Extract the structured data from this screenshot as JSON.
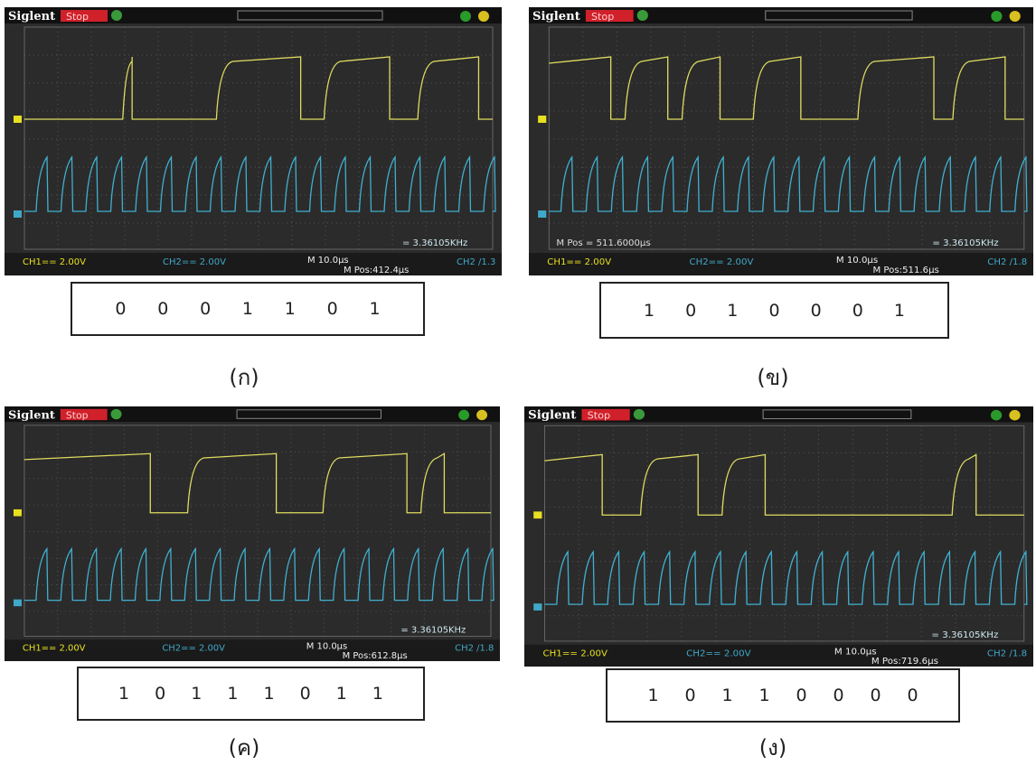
{
  "panels": [
    {
      "scope": {
        "brand": "Siglent",
        "status": "Stop",
        "ch1": "CH1== 2.00V",
        "ch2": "CH2== 2.00V",
        "timebase": "M 10.0μs",
        "mpos": "M Pos:412.4μs",
        "trigger": "CH2 /1.3",
        "frequency": "= 3.36105KHz"
      },
      "bits": [
        "0",
        "0",
        "0",
        "1",
        "1",
        "0",
        "1"
      ],
      "caption": "(ก)"
    },
    {
      "scope": {
        "brand": "Siglent",
        "status": "Stop",
        "ch1": "CH1== 2.00V",
        "ch2": "CH2== 2.00V",
        "timebase": "M 10.0μs",
        "mpos": "M Pos:511.6μs",
        "trigger": "CH2 /1.8",
        "frequency": "= 3.36105KHz",
        "mpos_overlay": "M Pos = 511.6000μs"
      },
      "bits": [
        "1",
        "0",
        "1",
        "0",
        "0",
        "0",
        "1"
      ],
      "caption": "(ข)"
    },
    {
      "scope": {
        "brand": "Siglent",
        "status": "Stop",
        "ch1": "CH1== 2.00V",
        "ch2": "CH2== 2.00V",
        "timebase": "M 10.0μs",
        "mpos": "M Pos:612.8μs",
        "trigger": "CH2 /1.8",
        "frequency": "= 3.36105KHz"
      },
      "bits": [
        "1",
        "0",
        "1",
        "1",
        "1",
        "0",
        "1",
        "1"
      ],
      "caption": "(ค)"
    },
    {
      "scope": {
        "brand": "Siglent",
        "status": "Stop",
        "ch1": "CH1== 2.00V",
        "ch2": "CH2== 2.00V",
        "timebase": "M 10.0μs",
        "mpos": "M Pos:719.6μs",
        "trigger": "CH2 /1.8",
        "frequency": "= 3.36105KHz"
      },
      "bits": [
        "1",
        "0",
        "1",
        "1",
        "0",
        "0",
        "0",
        "0"
      ],
      "caption": "(ง)"
    }
  ]
}
